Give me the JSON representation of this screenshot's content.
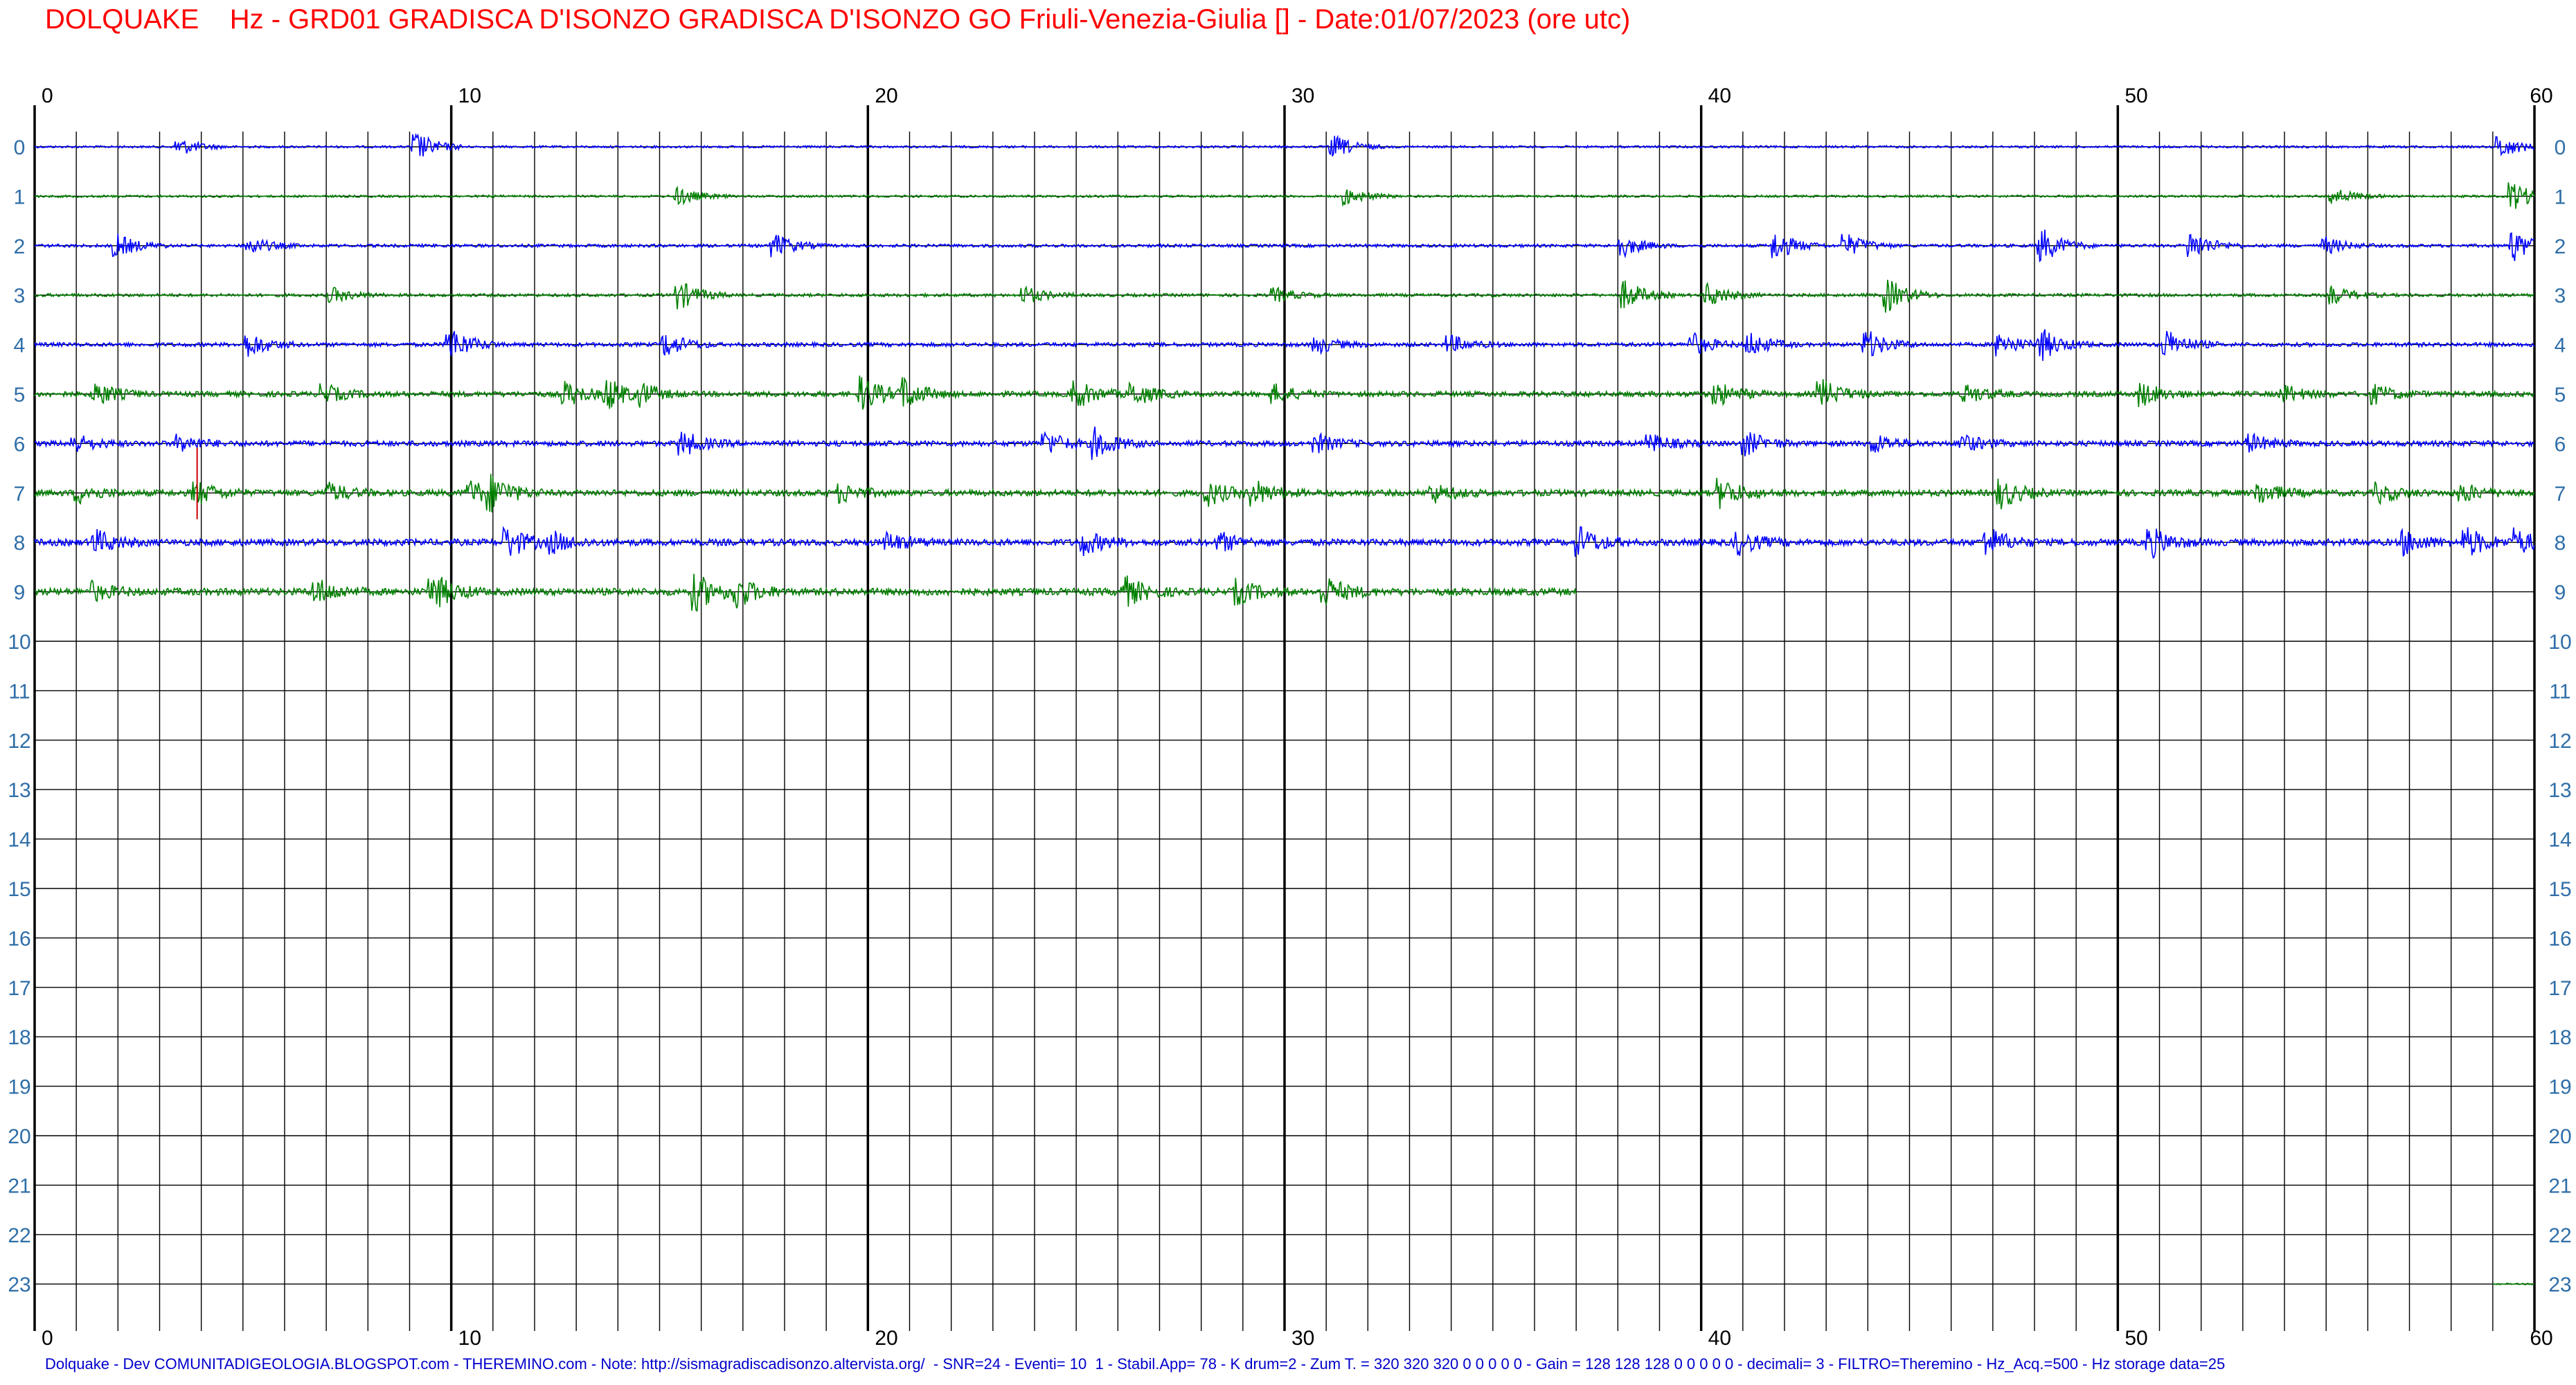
{
  "header": {
    "title": "DOLQUAKE    Hz - GRD01 GRADISCA D'ISONZO GRADISCA D'ISONZO GO Friuli-Venezia-Giulia [] - Date:01/07/2023 (ore utc)"
  },
  "footer": {
    "text": "Dolquake - Dev COMUNITADIGEOLOGIA.BLOGSPOT.com - THEREMINO.com - Note: http://sismagradiscadisonzo.altervista.org/  - SNR=24 - Eventi= 10  1 - Stabil.App= 78 - K drum=2 - Zum T. = 320 320 320 0 0 0 0 0 - Gain = 128 128 128 0 0 0 0 0 - decimali= 3 - FILTRO=Theremino - Hz_Acq.=500 - Hz storage data=25"
  },
  "colors": {
    "title": "#ff0000",
    "footer": "#0000cc",
    "trace_even": "#0000ff",
    "trace_odd": "#008000",
    "grid": "#000000",
    "row_label": "#2f6ea8",
    "spike": "#cc0000"
  },
  "chart_data": {
    "type": "line",
    "title": "DOLQUAKE    Hz - GRD01 GRADISCA D'ISONZO GRADISCA D'ISONZO GO Friuli-Venezia-Giulia [] - Date:01/07/2023 (ore utc)",
    "xlabel": "",
    "ylabel": "",
    "x_ticks": [
      "0",
      "10",
      "20",
      "30",
      "40",
      "50",
      "60"
    ],
    "xlim": [
      0,
      60
    ],
    "row_labels": [
      "0",
      "1",
      "2",
      "3",
      "4",
      "5",
      "6",
      "7",
      "8",
      "9",
      "10",
      "11",
      "12",
      "13",
      "14",
      "15",
      "16",
      "17",
      "18",
      "19",
      "20",
      "21",
      "22",
      "23"
    ],
    "grid": true,
    "minor_grid_step_minutes": 1,
    "major_grid_step_minutes": 10,
    "series": [
      {
        "hour": 0,
        "color": "#0000ff",
        "start_min": 0,
        "end_min": 60,
        "base_amp": 0.25,
        "events": [
          [
            3.5,
            1.5
          ],
          [
            9.2,
            2.5
          ],
          [
            31.2,
            2.0
          ],
          [
            59.2,
            2.0
          ]
        ]
      },
      {
        "hour": 1,
        "color": "#008000",
        "start_min": 0,
        "end_min": 60,
        "base_amp": 0.25,
        "events": [
          [
            15.5,
            1.5
          ],
          [
            31.5,
            1.5
          ],
          [
            55.2,
            1.5
          ],
          [
            59.5,
            2.5
          ]
        ]
      },
      {
        "hour": 2,
        "color": "#0000ff",
        "start_min": 0,
        "end_min": 60,
        "base_amp": 0.35,
        "events": [
          [
            2.0,
            2.0
          ],
          [
            5.2,
            1.5
          ],
          [
            17.8,
            2.0
          ],
          [
            38.1,
            2.0
          ],
          [
            41.8,
            2.5
          ],
          [
            43.5,
            2.0
          ],
          [
            48.2,
            3.0
          ],
          [
            51.8,
            2.5
          ],
          [
            55.0,
            1.5
          ],
          [
            59.5,
            3.0
          ]
        ]
      },
      {
        "hour": 3,
        "color": "#008000",
        "start_min": 0,
        "end_min": 60,
        "base_amp": 0.35,
        "events": [
          [
            7.2,
            1.2
          ],
          [
            15.5,
            2.5
          ],
          [
            23.8,
            1.5
          ],
          [
            29.8,
            1.2
          ],
          [
            38.2,
            2.5
          ],
          [
            40.2,
            2.0
          ],
          [
            44.5,
            3.0
          ],
          [
            55.2,
            1.5
          ]
        ]
      },
      {
        "hour": 4,
        "color": "#0000ff",
        "start_min": 0,
        "end_min": 60,
        "base_amp": 0.45,
        "events": [
          [
            5.2,
            2.0
          ],
          [
            10.0,
            3.0
          ],
          [
            15.2,
            2.0
          ],
          [
            30.8,
            1.5
          ],
          [
            34.0,
            1.5
          ],
          [
            39.8,
            2.0
          ],
          [
            41.2,
            2.0
          ],
          [
            44.0,
            2.5
          ],
          [
            47.2,
            2.0
          ],
          [
            48.2,
            2.5
          ],
          [
            51.2,
            2.5
          ]
        ]
      },
      {
        "hour": 5,
        "color": "#008000",
        "start_min": 0,
        "end_min": 60,
        "base_amp": 0.6,
        "events": [
          [
            1.5,
            2.0
          ],
          [
            7.0,
            1.5
          ],
          [
            12.8,
            2.0
          ],
          [
            13.8,
            2.5
          ],
          [
            14.6,
            1.5
          ],
          [
            19.9,
            3.0
          ],
          [
            20.9,
            2.5
          ],
          [
            25.0,
            2.5
          ],
          [
            26.4,
            2.0
          ],
          [
            29.8,
            1.5
          ],
          [
            40.4,
            2.0
          ],
          [
            42.9,
            2.5
          ],
          [
            46.4,
            1.5
          ],
          [
            50.6,
            2.0
          ],
          [
            54.0,
            1.5
          ],
          [
            56.2,
            1.5
          ]
        ]
      },
      {
        "hour": 6,
        "color": "#0000ff",
        "start_min": 0,
        "end_min": 60,
        "base_amp": 0.6,
        "events": [
          [
            1.0,
            1.5
          ],
          [
            3.5,
            1.5
          ],
          [
            15.6,
            2.0
          ],
          [
            24.3,
            2.0
          ],
          [
            25.5,
            2.5
          ],
          [
            30.8,
            1.5
          ],
          [
            38.8,
            1.5
          ],
          [
            41.1,
            2.0
          ],
          [
            44.2,
            1.5
          ],
          [
            46.3,
            1.5
          ],
          [
            53.2,
            1.5
          ]
        ]
      },
      {
        "hour": 7,
        "color": "#008000",
        "start_min": 0,
        "end_min": 60,
        "base_amp": 0.7,
        "events": [
          [
            1.1,
            1.5
          ],
          [
            3.9,
            2.0
          ],
          [
            7.1,
            1.5
          ],
          [
            10.5,
            2.0
          ],
          [
            11.0,
            2.5
          ],
          [
            19.4,
            1.5
          ],
          [
            28.2,
            2.0
          ],
          [
            29.3,
            2.0
          ],
          [
            33.6,
            1.5
          ],
          [
            40.5,
            2.5
          ],
          [
            47.2,
            2.5
          ],
          [
            53.4,
            2.0
          ],
          [
            56.3,
            1.5
          ],
          [
            58.3,
            1.5
          ]
        ]
      },
      {
        "hour": 8,
        "color": "#0000ff",
        "start_min": 0,
        "end_min": 60,
        "base_amp": 0.75,
        "events": [
          [
            1.5,
            2.0
          ],
          [
            11.4,
            2.5
          ],
          [
            12.5,
            1.5
          ],
          [
            20.5,
            1.5
          ],
          [
            25.2,
            2.0
          ],
          [
            28.5,
            1.5
          ],
          [
            37.1,
            2.5
          ],
          [
            40.9,
            2.0
          ],
          [
            46.9,
            2.5
          ],
          [
            50.8,
            2.5
          ],
          [
            56.9,
            2.0
          ],
          [
            58.4,
            2.5
          ],
          [
            59.6,
            2.0
          ]
        ]
      },
      {
        "hour": 9,
        "color": "#008000",
        "start_min": 0,
        "end_min": 37,
        "base_amp": 0.8,
        "events": [
          [
            1.4,
            1.5
          ],
          [
            6.8,
            2.0
          ],
          [
            9.6,
            3.0
          ],
          [
            15.9,
            3.0
          ],
          [
            16.9,
            2.5
          ],
          [
            26.2,
            2.5
          ],
          [
            28.9,
            2.0
          ],
          [
            31.0,
            2.5
          ]
        ]
      },
      {
        "hour": 23,
        "color": "#008000",
        "start_min": 59,
        "end_min": 60,
        "base_amp": 0.15,
        "events": []
      }
    ]
  }
}
